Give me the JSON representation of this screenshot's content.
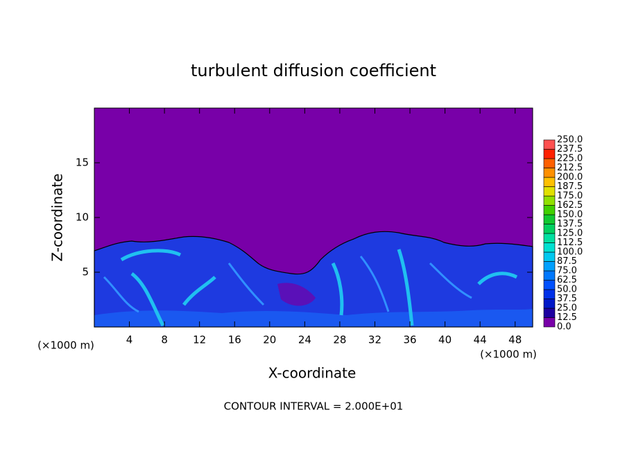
{
  "chart_data": {
    "type": "contour",
    "title": "turbulent diffusion coefficient",
    "x_label": "X-coordinate",
    "y_label": "Z-coordinate",
    "x_unit": "(×1000 m)",
    "y_unit": "(×1000 m)",
    "annotation": "CONTOUR INTERVAL = 2.000E+01",
    "xlim": [
      0,
      50
    ],
    "ylim": [
      0,
      20
    ],
    "xticks": [
      4,
      8,
      12,
      16,
      20,
      24,
      28,
      32,
      36,
      40,
      44,
      48
    ],
    "yticks": [
      5,
      10,
      15
    ],
    "colorbar": {
      "levels": [
        {
          "value": 0,
          "label": "0.0"
        },
        {
          "value": 12.5,
          "label": "12.5"
        },
        {
          "value": 25,
          "label": "25.0"
        },
        {
          "value": 37.5,
          "label": "37.5"
        },
        {
          "value": 50,
          "label": "50.0"
        },
        {
          "value": 62.5,
          "label": "62.5"
        },
        {
          "value": 75,
          "label": "75.0"
        },
        {
          "value": 87.5,
          "label": "87.5"
        },
        {
          "value": 100,
          "label": "100.0"
        },
        {
          "value": 112.5,
          "label": "112.5"
        },
        {
          "value": 125,
          "label": "125.0"
        },
        {
          "value": 137.5,
          "label": "137.5"
        },
        {
          "value": 150,
          "label": "150.0"
        },
        {
          "value": 162.5,
          "label": "162.5"
        },
        {
          "value": 175,
          "label": "175.0"
        },
        {
          "value": 187.5,
          "label": "187.5"
        },
        {
          "value": 200,
          "label": "200.0"
        },
        {
          "value": 212.5,
          "label": "212.5"
        },
        {
          "value": 225,
          "label": "225.0"
        },
        {
          "value": 237.5,
          "label": "237.5"
        },
        {
          "value": 250,
          "label": "250.0"
        }
      ],
      "colors": [
        "#7800a8",
        "#1c00a0",
        "#0018c8",
        "#0030e8",
        "#0050ff",
        "#0078ff",
        "#00a0ff",
        "#00c8f0",
        "#00e0d0",
        "#00e0a0",
        "#00d060",
        "#10c830",
        "#40d000",
        "#90e000",
        "#e0e000",
        "#ffc000",
        "#ff9000",
        "#ff6000",
        "#ff2000",
        "#ff5050"
      ]
    }
  }
}
